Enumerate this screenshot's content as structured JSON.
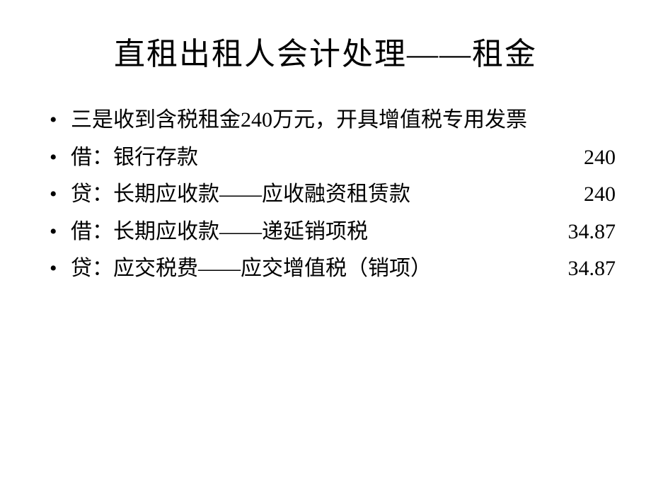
{
  "title": "直租出租人会计处理——租金",
  "items": [
    {
      "label": "三是收到含税租金240万元，开具增值税专用发票",
      "value": ""
    },
    {
      "label": "借：银行存款",
      "value": "240"
    },
    {
      "label": "贷：长期应收款——应收融资租赁款",
      "value": "240"
    },
    {
      "label": "借：长期应收款——递延销项税",
      "value": "34.87"
    },
    {
      "label": "贷：应交税费——应交增值税（销项）",
      "value": "34.87"
    }
  ],
  "styling": {
    "background_color": "#ffffff",
    "text_color": "#000000",
    "title_fontsize": 44,
    "body_fontsize": 30,
    "font_family": "SimSun",
    "bullet_style": "disc"
  }
}
